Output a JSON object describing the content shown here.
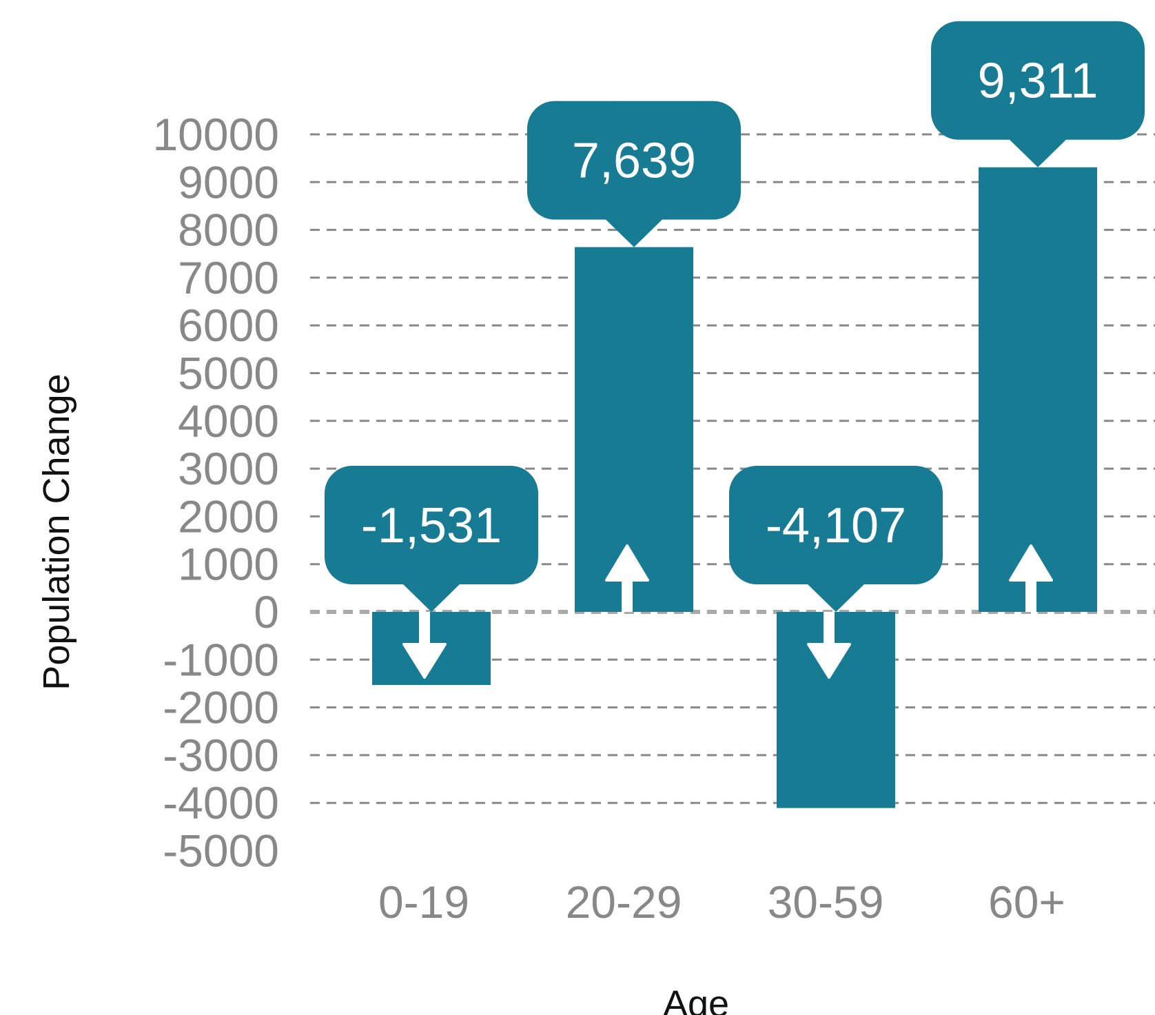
{
  "chart_data": {
    "type": "bar",
    "title": "",
    "xlabel": "Age",
    "ylabel": "Population Change",
    "categories": [
      "0-19",
      "20-29",
      "30-59",
      "60+"
    ],
    "values": [
      -1531,
      7639,
      -4107,
      9311
    ],
    "data_labels": [
      "-1,531",
      "7,639",
      "-4,107",
      "9,311"
    ],
    "directions": [
      "down",
      "up",
      "down",
      "up"
    ],
    "ylim": [
      -5000,
      10000
    ],
    "yticks": [
      10000,
      9000,
      8000,
      7000,
      6000,
      5000,
      4000,
      3000,
      2000,
      1000,
      0,
      -1000,
      -2000,
      -3000,
      -4000,
      -5000
    ],
    "grid": true,
    "legend": "none",
    "colors": {
      "bar": "#177b94",
      "grid": "#888888",
      "text": "#888888",
      "label_text": "#ffffff"
    }
  }
}
